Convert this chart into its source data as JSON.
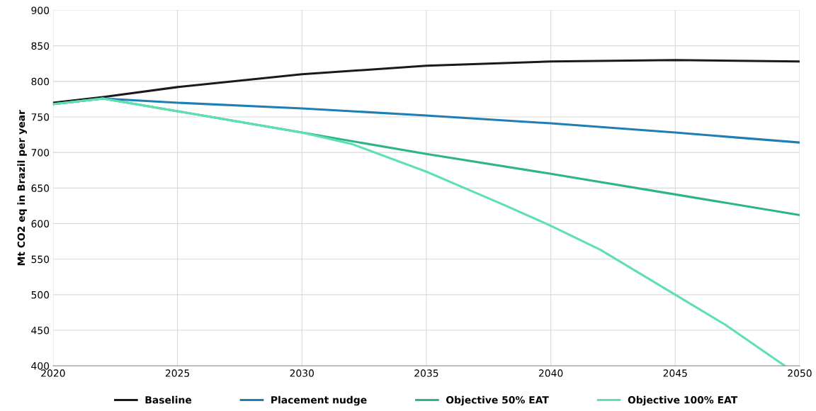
{
  "chart_data": {
    "type": "line",
    "ylabel": "Mt CO2 eq in Brazil per year",
    "x": [
      2020,
      2022,
      2025,
      2030,
      2035,
      2040,
      2045,
      2050
    ],
    "series": [
      {
        "name": "Baseline",
        "color": "#1a1a1a",
        "values": [
          770,
          778,
          792,
          810,
          822,
          828,
          830,
          828
        ]
      },
      {
        "name": "Placement nudge",
        "color": "#1f7fb4",
        "values": [
          768,
          776,
          770,
          762,
          752,
          741,
          728,
          714
        ]
      },
      {
        "name": "Objective 50% EAT",
        "color": "#2fb48a",
        "values": [
          768,
          776,
          758,
          728,
          698,
          670,
          641,
          612
        ]
      },
      {
        "name": "Objective 100% EAT",
        "color": "#5fe0b0",
        "x": [
          2020,
          2022,
          2025,
          2030,
          2032,
          2035,
          2038,
          2040,
          2042,
          2045,
          2047,
          2049.4
        ],
        "values": [
          768,
          776,
          758,
          728,
          712,
          673,
          628,
          597,
          563,
          500,
          458,
          400
        ]
      }
    ],
    "xlim": [
      2020,
      2050
    ],
    "xticks": [
      2020,
      2025,
      2030,
      2035,
      2040,
      2045,
      2050
    ],
    "ylim": [
      400,
      900
    ],
    "yticks": [
      400,
      450,
      500,
      550,
      600,
      650,
      700,
      750,
      800,
      850,
      900
    ],
    "grid": true,
    "legend": "bottom",
    "marker": "none",
    "line_style": "solid"
  }
}
